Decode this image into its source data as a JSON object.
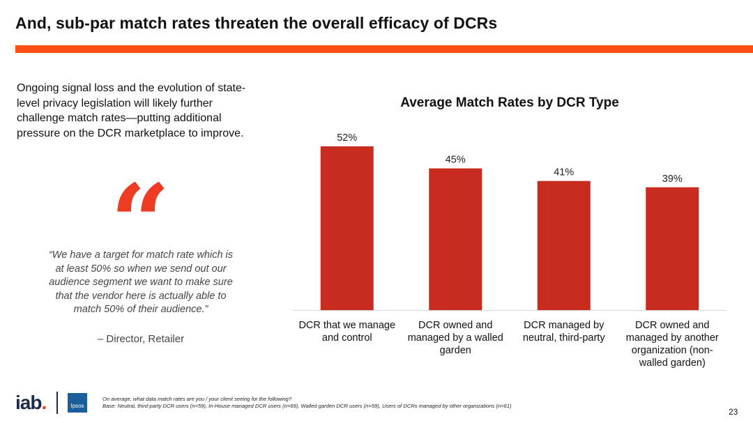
{
  "page": {
    "title": "And, sub-par match rates threaten the overall efficacy of DCRs",
    "intro": "Ongoing signal loss and the evolution of state-level privacy legislation will likely further challenge match rates—putting additional pressure on the DCR marketplace to improve.",
    "quote_mark": "“",
    "quote": "“We have a target for match rate which is at least 50% so when we send out our audience segment we want to make sure that the vendor here is actually able to match 50% of their audience.”",
    "quote_author": "– Director, Retailer",
    "footnote_question": "On average, what data match rates are you / your client seeing for the following?",
    "footnote_base": "Base: Neutral, third-party DCR users (n=59), In-House managed DCR users (n=69), Walled garden DCR users (n=59), Users of DCRs managed by other organizations (n=61)",
    "page_number": "23",
    "logo_iab": "iab",
    "logo_iab_dot": ".",
    "logo_ipsos": "Ipsos"
  },
  "colors": {
    "accent": "#fe4f14",
    "bar": "#c82c1f",
    "quote_mark": "#ee3b24"
  },
  "chart_data": {
    "type": "bar",
    "title": "Average Match Rates by DCR Type",
    "xlabel": "",
    "ylabel": "",
    "categories": [
      [
        "DCR that we manage",
        "and control"
      ],
      [
        "DCR owned and",
        "managed by a walled",
        "garden"
      ],
      [
        "DCR managed by",
        "neutral, third-party"
      ],
      [
        "DCR owned and",
        "managed by another",
        "organization (non-",
        "walled garden)"
      ]
    ],
    "values": [
      52,
      45,
      41,
      39
    ],
    "value_labels": [
      "52%",
      "45%",
      "41%",
      "39%"
    ],
    "ylim": [
      0,
      52
    ],
    "grid": false,
    "legend": "none"
  }
}
